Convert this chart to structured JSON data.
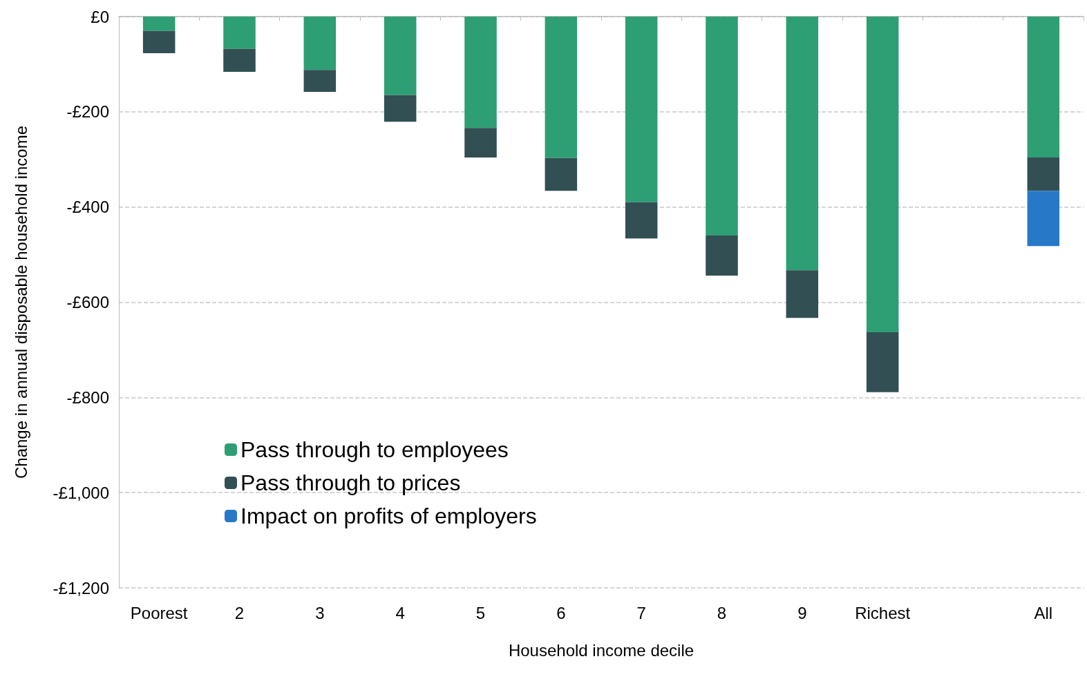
{
  "chart_data": {
    "type": "bar",
    "xlabel": "Household income decile",
    "ylabel": "Change in annual disposable household income",
    "categories": [
      "Poorest",
      "2",
      "3",
      "4",
      "5",
      "6",
      "7",
      "8",
      "9",
      "Richest",
      null,
      "All"
    ],
    "stacked": true,
    "series": [
      {
        "name": "Pass through to employees",
        "color": "#2e9e74",
        "values": [
          -30,
          -68,
          -112,
          -165,
          -234,
          -297,
          -390,
          -460,
          -533,
          -663,
          null,
          -296
        ]
      },
      {
        "name": "Pass through to prices",
        "color": "#324f53",
        "values": [
          -47,
          -48,
          -46,
          -56,
          -62,
          -69,
          -76,
          -84,
          -100,
          -126,
          null,
          -70
        ]
      },
      {
        "name": "Impact on profits of employers",
        "color": "#2878c8",
        "values": [
          null,
          null,
          null,
          null,
          null,
          null,
          null,
          null,
          null,
          null,
          null,
          -116
        ]
      }
    ],
    "ylim": [
      -1200,
      0
    ],
    "yticks": [
      {
        "value": -1200,
        "label": "-£1,200"
      },
      {
        "value": -1000,
        "label": "-£1,000"
      },
      {
        "value": -800,
        "label": "-£800"
      },
      {
        "value": -600,
        "label": "-£600"
      },
      {
        "value": -400,
        "label": "-£400"
      },
      {
        "value": -200,
        "label": "-£200"
      },
      {
        "value": 0,
        "label": "£0"
      }
    ],
    "grid": "y",
    "legend": "bottom left"
  }
}
